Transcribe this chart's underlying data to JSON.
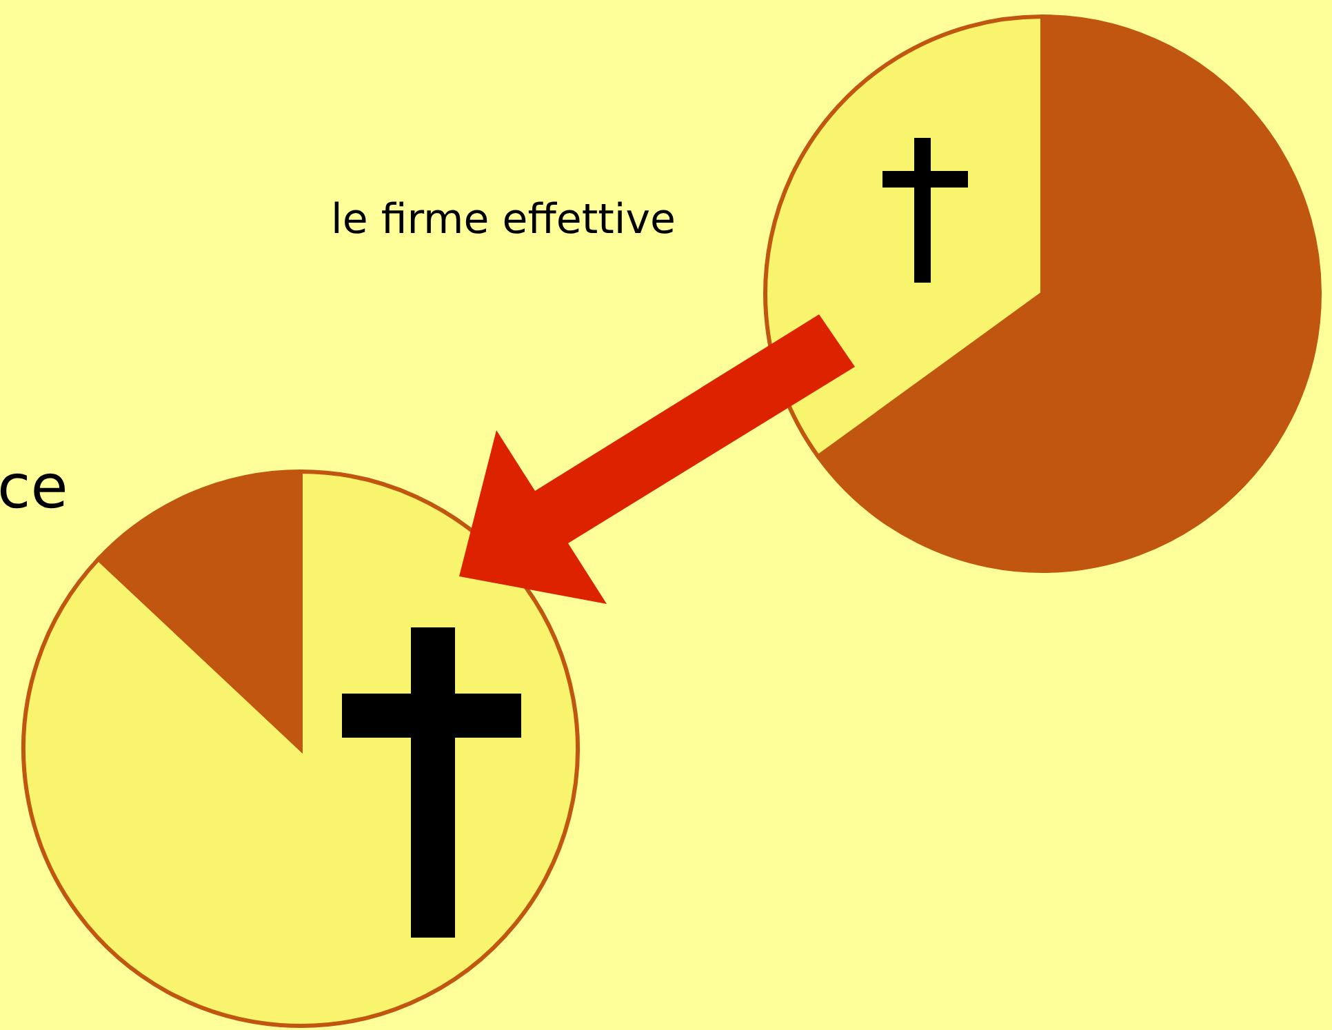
{
  "chart_data": [
    {
      "type": "pie",
      "categories": [
        null,
        null
      ],
      "values": [
        65,
        35
      ],
      "colors": [
        "#c0560f",
        "#f8f46e"
      ],
      "annotations": [
        "le firme effettive"
      ]
    },
    {
      "type": "pie",
      "categories": [
        null,
        null
      ],
      "values": [
        87,
        13
      ],
      "colors": [
        "#f8f46e",
        "#c0560f"
      ],
      "annotations": [
        "ce"
      ]
    }
  ]
}
